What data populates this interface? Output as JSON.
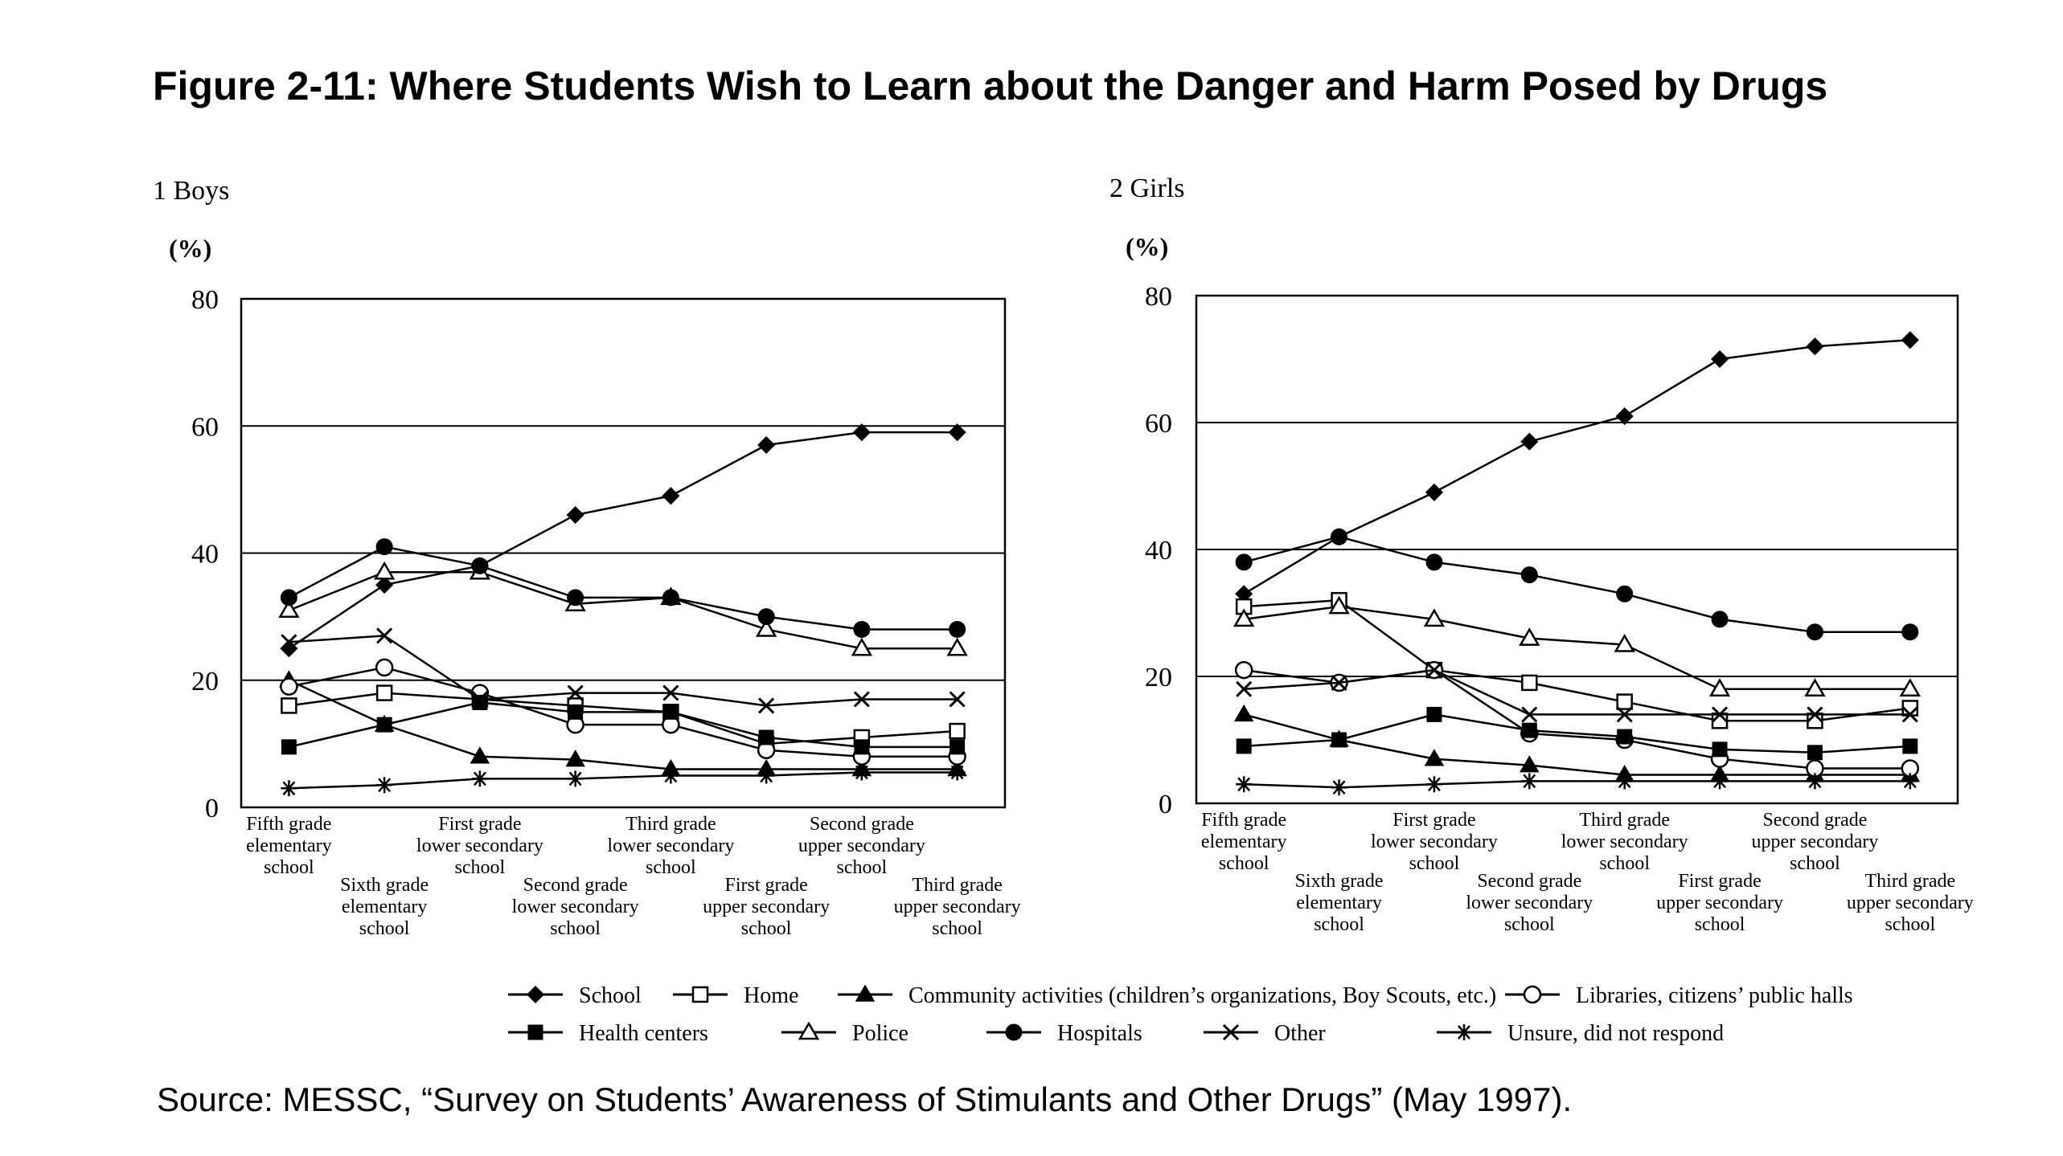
{
  "title": "Figure 2-11: Where Students Wish to Learn about the Danger and Harm Posed by Drugs",
  "source": "Source: MESSC, “Survey on Students’ Awareness of Stimulants and Other Drugs” (May 1997).",
  "legend": [
    {
      "name": "School",
      "marker": "diamond-filled"
    },
    {
      "name": "Home",
      "marker": "square-open"
    },
    {
      "name": "Community activities (children’s organizations, Boy Scouts, etc.)",
      "marker": "triangle-filled"
    },
    {
      "name": "Libraries, citizens’ public halls",
      "marker": "circle-open"
    },
    {
      "name": "Health centers",
      "marker": "square-filled"
    },
    {
      "name": "Police",
      "marker": "triangle-open"
    },
    {
      "name": "Hospitals",
      "marker": "circle-filled"
    },
    {
      "name": "Other",
      "marker": "x"
    },
    {
      "name": "Unsure, did not respond",
      "marker": "asterisk"
    }
  ],
  "chart_data": [
    {
      "type": "line",
      "panel_label": "1 Boys",
      "yunit": "(%)",
      "ylim": [
        0,
        80
      ],
      "yticks": [
        0,
        20,
        40,
        60,
        80
      ],
      "gridlines": [
        20,
        40,
        60
      ],
      "categories": [
        [
          "Fifth grade",
          "elementary",
          "school"
        ],
        [
          "Sixth grade",
          "elementary",
          "school"
        ],
        [
          "First grade",
          "lower secondary",
          "school"
        ],
        [
          "Second grade",
          "lower secondary",
          "school"
        ],
        [
          "Third grade",
          "lower secondary",
          "school"
        ],
        [
          "First grade",
          "upper secondary",
          "school"
        ],
        [
          "Second grade",
          "upper secondary",
          "school"
        ],
        [
          "Third grade",
          "upper secondary",
          "school"
        ]
      ],
      "series": [
        {
          "name": "School",
          "values": [
            25,
            35,
            38,
            46,
            49,
            57,
            59,
            59
          ]
        },
        {
          "name": "Home",
          "values": [
            16,
            18,
            17,
            16,
            15,
            10,
            11,
            12
          ]
        },
        {
          "name": "Community activities (children’s organizations, Boy Scouts, etc.)",
          "values": [
            20,
            13,
            8,
            7.5,
            6,
            6,
            6,
            6
          ]
        },
        {
          "name": "Libraries, citizens’ public halls",
          "values": [
            19,
            22,
            18,
            13,
            13,
            9,
            8,
            8
          ]
        },
        {
          "name": "Health centers",
          "values": [
            9.5,
            13,
            16.5,
            15,
            15,
            11,
            9.5,
            9.5
          ]
        },
        {
          "name": "Police",
          "values": [
            31,
            37,
            37,
            32,
            33,
            28,
            25,
            25
          ]
        },
        {
          "name": "Hospitals",
          "values": [
            33,
            41,
            38,
            33,
            33,
            30,
            28,
            28
          ]
        },
        {
          "name": "Other",
          "values": [
            26,
            27,
            17,
            18,
            18,
            16,
            17,
            17
          ]
        },
        {
          "name": "Unsure, did not respond",
          "values": [
            3,
            3.5,
            4.5,
            4.5,
            5,
            5,
            5.5,
            5.5
          ]
        }
      ]
    },
    {
      "type": "line",
      "panel_label": "2 Girls",
      "yunit": "(%)",
      "ylim": [
        0,
        80
      ],
      "yticks": [
        0,
        20,
        40,
        60,
        80
      ],
      "gridlines": [
        20,
        40,
        60
      ],
      "categories": [
        [
          "Fifth grade",
          "elementary",
          "school"
        ],
        [
          "Sixth grade",
          "elementary",
          "school"
        ],
        [
          "First grade",
          "lower secondary",
          "school"
        ],
        [
          "Second grade",
          "lower secondary",
          "school"
        ],
        [
          "Third grade",
          "lower secondary",
          "school"
        ],
        [
          "First grade",
          "upper secondary",
          "school"
        ],
        [
          "Second grade",
          "upper secondary",
          "school"
        ],
        [
          "Third grade",
          "upper secondary",
          "school"
        ]
      ],
      "series": [
        {
          "name": "School",
          "values": [
            33,
            42,
            49,
            57,
            61,
            70,
            72,
            73
          ]
        },
        {
          "name": "Home",
          "values": [
            31,
            32,
            21,
            19,
            16,
            13,
            13,
            15
          ]
        },
        {
          "name": "Community activities (children’s organizations, Boy Scouts, etc.)",
          "values": [
            14,
            10,
            7,
            6,
            4.5,
            4.5,
            4.5,
            4.5
          ]
        },
        {
          "name": "Libraries, citizens’ public halls",
          "values": [
            21,
            19,
            21,
            11,
            10,
            7,
            5.5,
            5.5
          ]
        },
        {
          "name": "Health centers",
          "values": [
            9,
            10,
            14,
            11.5,
            10.5,
            8.5,
            8,
            9
          ]
        },
        {
          "name": "Police",
          "values": [
            29,
            31,
            29,
            26,
            25,
            18,
            18,
            18
          ]
        },
        {
          "name": "Hospitals",
          "values": [
            38,
            42,
            38,
            36,
            33,
            29,
            27,
            27
          ]
        },
        {
          "name": "Other",
          "values": [
            18,
            19,
            21,
            14,
            14,
            14,
            14,
            14
          ]
        },
        {
          "name": "Unsure, did not respond",
          "values": [
            3,
            2.5,
            3,
            3.5,
            3.5,
            3.5,
            3.5,
            3.5
          ]
        }
      ]
    }
  ]
}
